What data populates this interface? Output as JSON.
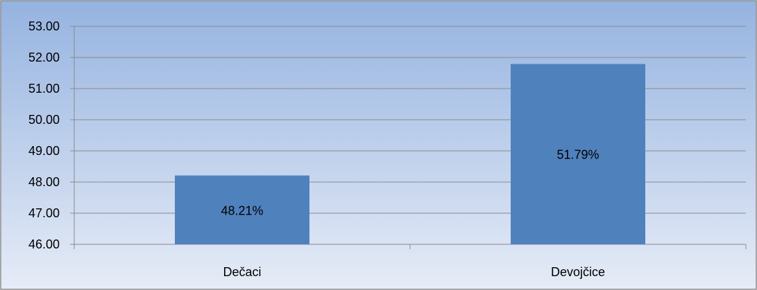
{
  "chart_data": {
    "type": "bar",
    "categories": [
      "Dečaci",
      "Devojčice"
    ],
    "values": [
      48.21,
      51.79
    ],
    "data_labels": [
      "48.21%",
      "51.79%"
    ],
    "ylim": [
      46,
      53
    ],
    "yticks": [
      "46.00",
      "47.00",
      "48.00",
      "49.00",
      "50.00",
      "51.00",
      "52.00",
      "53.00"
    ],
    "grid": true,
    "legend": "none"
  },
  "colors": {
    "bar": "#4f81bd",
    "bg_top": "#95b3e0",
    "bg_bottom": "#e6ecf7",
    "grid": "#8a8a8a",
    "border": "#8c8c8c"
  }
}
